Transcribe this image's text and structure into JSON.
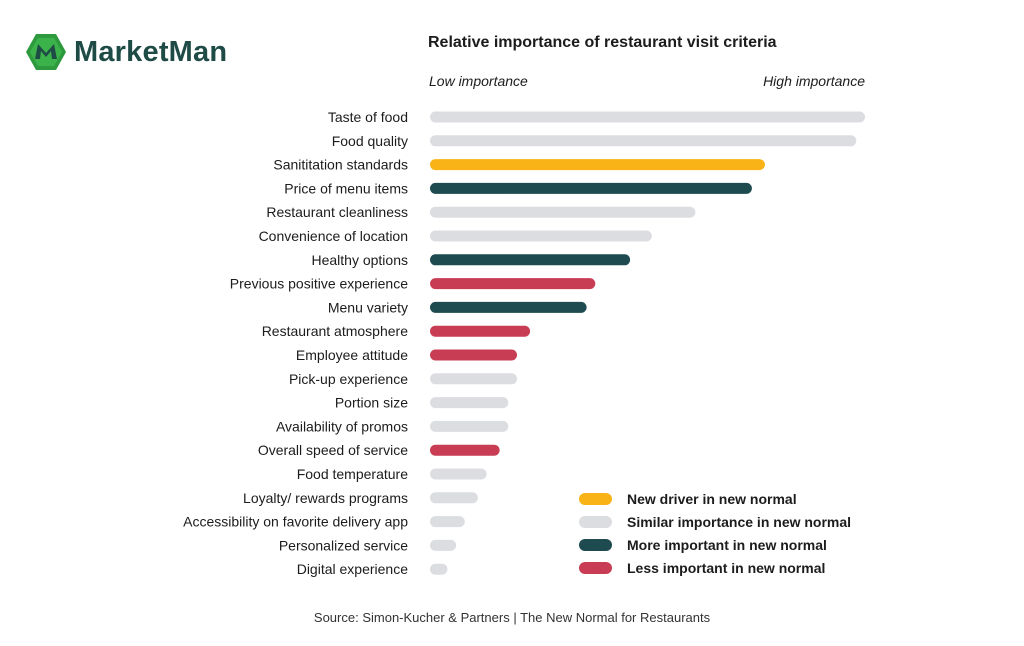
{
  "brand": {
    "name": "MarketMan",
    "logo_icon": "marketman-logo-icon"
  },
  "source": "Source: Simon-Kucher & Partners | The New Normal for Restaurants",
  "chart_data": {
    "type": "bar",
    "orientation": "horizontal",
    "title": "Relative importance of restaurant visit criteria",
    "axis_low_label": "Low importance",
    "axis_high_label": "High importance",
    "xlim": [
      0,
      100
    ],
    "grid": false,
    "legend_position": "bottom-right",
    "colors": {
      "new": "#f9b316",
      "similar": "#dcdde1",
      "more": "#1d4b4f",
      "less": "#c93d54"
    },
    "legend": [
      {
        "key": "new",
        "label": "New driver in new normal"
      },
      {
        "key": "similar",
        "label": "Similar importance in new normal"
      },
      {
        "key": "more",
        "label": "More important in new normal"
      },
      {
        "key": "less",
        "label": "Less important in new normal"
      }
    ],
    "categories": [
      "Taste of food",
      "Food quality",
      "Sanititation standards",
      "Price of menu items",
      "Restaurant cleanliness",
      "Convenience of location",
      "Healthy options",
      "Previous positive experience",
      "Menu variety",
      "Restaurant atmosphere",
      "Employee attitude",
      "Pick-up experience",
      "Portion size",
      "Availability of promos",
      "Overall speed of service",
      "Food temperature",
      "Loyalty/ rewards programs",
      "Accessibility on favorite delivery app",
      "Personalized service",
      "Digital experience"
    ],
    "values": [
      100,
      98,
      77,
      74,
      61,
      51,
      46,
      38,
      36,
      23,
      20,
      20,
      18,
      18,
      16,
      13,
      11,
      8,
      6,
      4
    ],
    "groups": [
      "similar",
      "similar",
      "new",
      "more",
      "similar",
      "similar",
      "more",
      "less",
      "more",
      "less",
      "less",
      "similar",
      "similar",
      "similar",
      "less",
      "similar",
      "similar",
      "similar",
      "similar",
      "similar"
    ]
  }
}
